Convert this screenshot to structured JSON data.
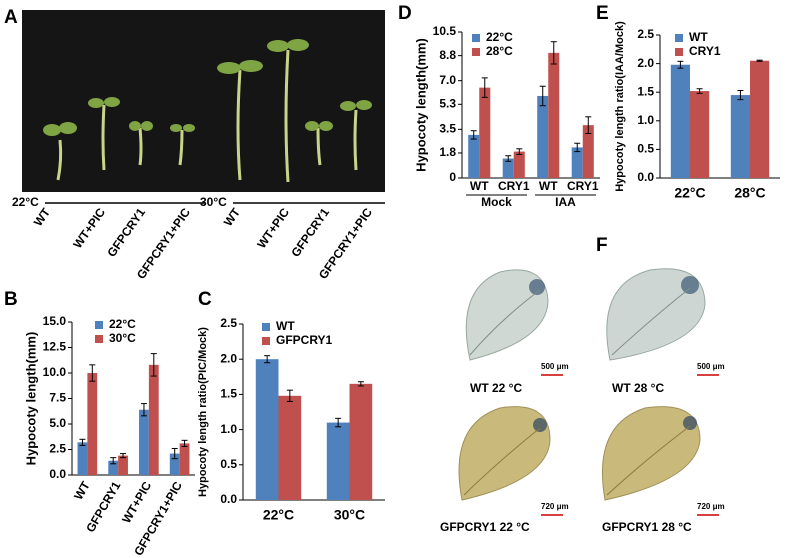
{
  "panel_letters": [
    "A",
    "B",
    "C",
    "D",
    "E",
    "F"
  ],
  "photo_a": {
    "groups": [
      {
        "temperature": "22°C",
        "labels": [
          "WT",
          "WT+PIC",
          "GFPCRY1",
          "GFPCRY1+PIC"
        ]
      },
      {
        "temperature": "30°C",
        "labels": [
          "WT",
          "WT+PIC",
          "GFPCRY1",
          "GFPCRY1+PIC"
        ]
      }
    ]
  },
  "photo_f": {
    "images": [
      {
        "label": "WT 22 °C",
        "scale": "500 μm"
      },
      {
        "label": "WT  28 °C",
        "scale": "500 μm"
      },
      {
        "label": "GFPCRY1  22 °C",
        "scale": "720 μm"
      },
      {
        "label": "GFPCRY1  28 °C",
        "scale": "720 μm"
      }
    ]
  },
  "chart_data": [
    {
      "type": "bar",
      "y_label": "Hypocoty length(mm)",
      "categories": [
        "WT",
        "GFPCRY1",
        "WT+PIC",
        "GFPCRY1+PIC"
      ],
      "series": [
        {
          "name": "22°C",
          "color": "#4f81bd",
          "values": [
            3.2,
            1.4,
            6.4,
            2.1
          ],
          "errors": [
            0.3,
            0.3,
            0.6,
            0.5
          ]
        },
        {
          "name": "30°C",
          "color": "#c0504d",
          "values": [
            10.0,
            1.9,
            10.8,
            3.1
          ],
          "errors": [
            0.8,
            0.2,
            1.1,
            0.3
          ]
        }
      ],
      "ylim": [
        0,
        15
      ],
      "yticks": [
        {
          "value": 0,
          "label": "0.0"
        },
        2.5,
        {
          "value": 5,
          "label": "5.0"
        },
        7.5,
        {
          "value": 10,
          "label": "10.0"
        },
        12.5,
        {
          "value": 15,
          "label": "15.0"
        }
      ]
    },
    {
      "type": "bar",
      "y_label": "Hypocoty length ratio(PIC/Mock)",
      "categories": [
        "22°C",
        "30°C"
      ],
      "series": [
        {
          "name": "WT",
          "color": "#4f81bd",
          "values": [
            2.0,
            1.1
          ],
          "errors": [
            0.05,
            0.06
          ]
        },
        {
          "name": "GFPCRY1",
          "color": "#c0504d",
          "values": [
            1.48,
            1.65
          ],
          "errors": [
            0.08,
            0.03
          ]
        }
      ],
      "ylim": [
        0,
        2.5
      ],
      "yticks": [
        {
          "value": 0,
          "label": "0.0"
        },
        0.5,
        {
          "value": 1,
          "label": "1.0"
        },
        1.5,
        {
          "value": 2,
          "label": "2.0"
        },
        2.5
      ]
    },
    {
      "type": "bar",
      "y_label": "Hypocoty length(mm)",
      "categories": [
        "WT",
        "CRY1",
        "WT",
        "CRY1"
      ],
      "group_labels": [
        "Mock",
        "IAA"
      ],
      "series": [
        {
          "name": "22°C",
          "color": "#4f81bd",
          "values": [
            3.1,
            1.4,
            5.9,
            2.2
          ],
          "errors": [
            0.3,
            0.2,
            0.7,
            0.3
          ]
        },
        {
          "name": "28°C",
          "color": "#c0504d",
          "values": [
            6.5,
            1.9,
            9.0,
            3.8
          ],
          "errors": [
            0.7,
            0.2,
            0.8,
            0.6
          ]
        }
      ],
      "ylim": [
        0,
        10.5
      ],
      "yticks": [
        0,
        1.8,
        3.5,
        5.3,
        {
          "value": 7,
          "label": "7.0"
        },
        8.8,
        10.5
      ]
    },
    {
      "type": "bar",
      "y_label": "Hypocoty length ratio(IAA/Mock)",
      "categories": [
        "22°C",
        "28°C"
      ],
      "series": [
        {
          "name": "WT",
          "color": "#4f81bd",
          "values": [
            1.98,
            1.45
          ],
          "errors": [
            0.06,
            0.08
          ]
        },
        {
          "name": "CRY1",
          "color": "#c0504d",
          "values": [
            1.52,
            2.05
          ],
          "errors": [
            0.04,
            0.01
          ]
        }
      ],
      "ylim": [
        0,
        2.5
      ],
      "yticks": [
        {
          "value": 0,
          "label": "0.0"
        },
        0.5,
        {
          "value": 1,
          "label": "1.0"
        },
        1.5,
        {
          "value": 2,
          "label": "2.0"
        },
        2.5
      ]
    }
  ]
}
